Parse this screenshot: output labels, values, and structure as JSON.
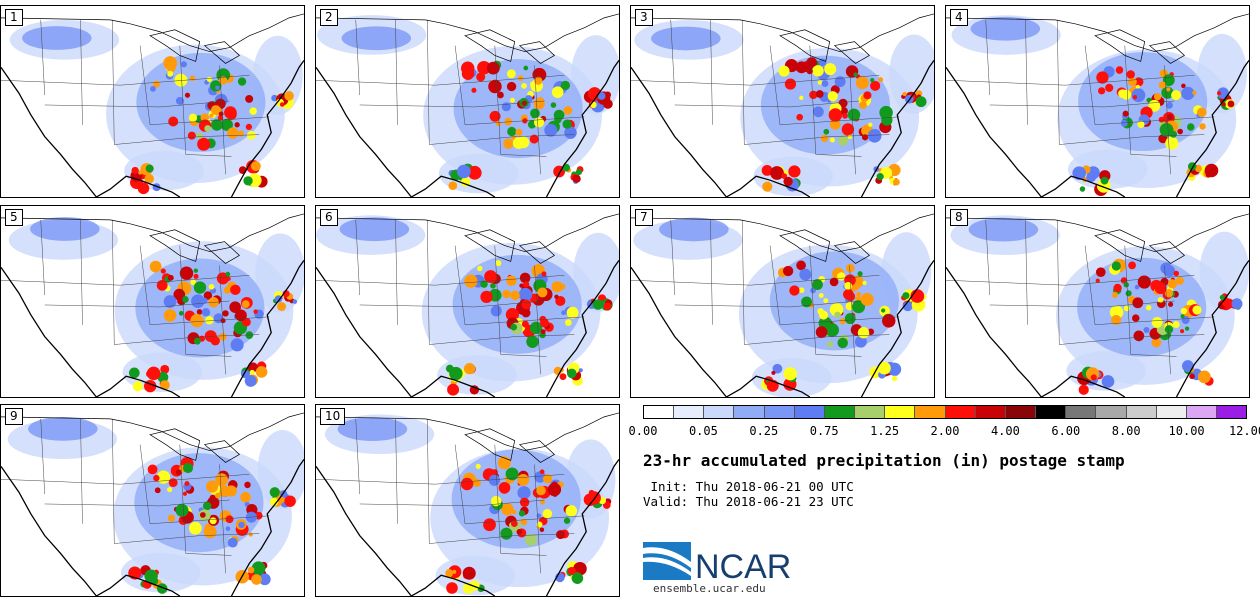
{
  "panels": [
    {
      "label": "1"
    },
    {
      "label": "2"
    },
    {
      "label": "3"
    },
    {
      "label": "4"
    },
    {
      "label": "5"
    },
    {
      "label": "6"
    },
    {
      "label": "7"
    },
    {
      "label": "8"
    },
    {
      "label": "9"
    },
    {
      "label": "10"
    }
  ],
  "colorbar": {
    "colors": [
      "#ffffff",
      "#e6eefd",
      "#c9d8fb",
      "#90acf7",
      "#7a97f5",
      "#5f7df2",
      "#129a1f",
      "#a7cf6a",
      "#ffff1e",
      "#ff9b0b",
      "#ff0f0a",
      "#c80207",
      "#8a0508",
      "#000000",
      "#777777",
      "#a8a8a8",
      "#cccccc",
      "#eeeeee",
      "#dca6f5",
      "#9a1ee6"
    ],
    "ticks": [
      "0.00",
      "0.05",
      "0.25",
      "0.75",
      "1.25",
      "2.00",
      "4.00",
      "6.00",
      "8.00",
      "10.00",
      "12.00"
    ]
  },
  "title": "23-hr accumulated precipitation (in) postage stamp",
  "init": " Init: Thu 2018-06-21 00 UTC",
  "valid": "Valid: Thu 2018-06-21 23 UTC",
  "logo_text": "NCAR",
  "site": "ensemble.ucar.edu"
}
